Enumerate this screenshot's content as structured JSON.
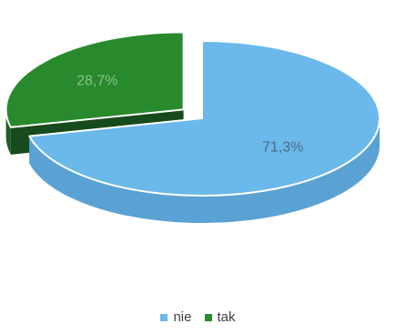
{
  "chart_data": {
    "type": "pie",
    "style": "3d-exploded",
    "slices": [
      {
        "label": "nie",
        "value": 71.3,
        "display": "71,3%",
        "color": "#6bb8ea",
        "side_color": "#5aa2d4",
        "bottom_color": "#4c90c2"
      },
      {
        "label": "tak",
        "value": 28.7,
        "display": "28,7%",
        "color": "#288a2c",
        "side_color": "#1d5e24",
        "bottom_color": "#174a1c"
      }
    ],
    "legend": {
      "position": "bottom"
    }
  }
}
